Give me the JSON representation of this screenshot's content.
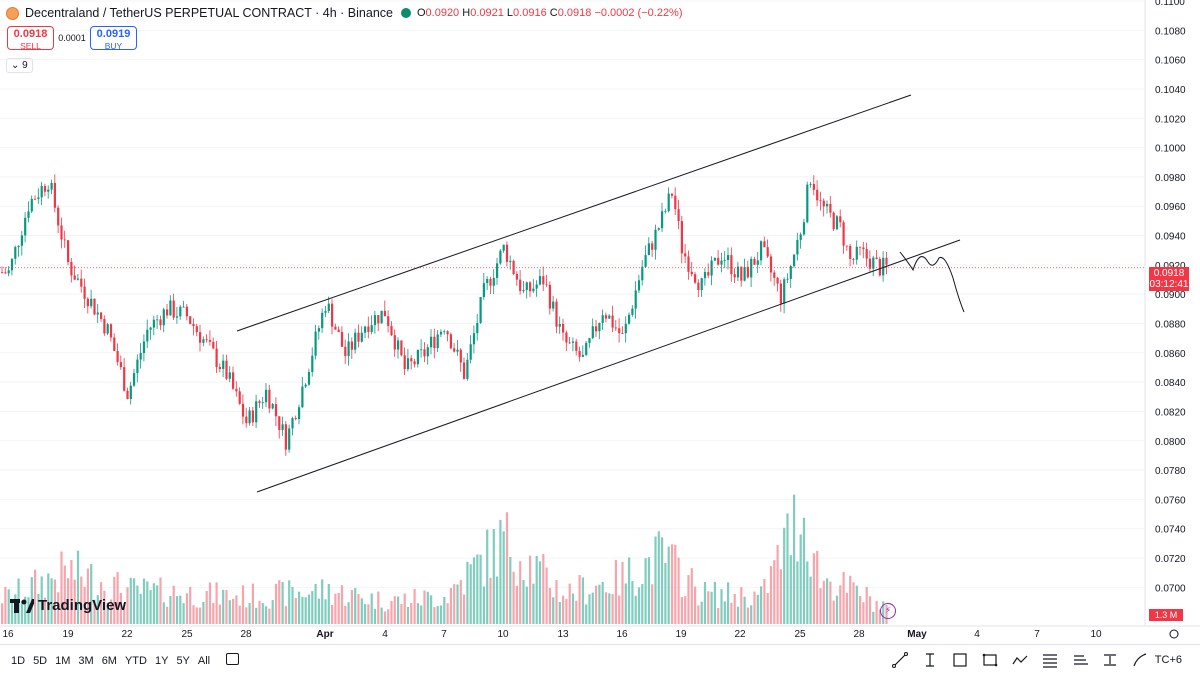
{
  "header": {
    "symbol": "Decentraland / TetherUS PERPETUAL CONTRACT · 4h · Binance",
    "ohlc": [
      {
        "k": "O",
        "v": "0.0920"
      },
      {
        "k": "H",
        "v": "0.0921"
      },
      {
        "k": "L",
        "v": "0.0916"
      },
      {
        "k": "C",
        "v": "0.0918"
      }
    ],
    "change": "−0.0002 (−0.22%)"
  },
  "trade": {
    "sell_price": "0.0918",
    "sell_label": "SELL",
    "spread": "0.0001",
    "buy_price": "0.0919",
    "buy_label": "BUY"
  },
  "indicator_toggle": "9",
  "price_axis": {
    "ticks": [
      "0.1100",
      "0.1080",
      "0.1060",
      "0.1040",
      "0.1020",
      "0.1000",
      "0.0980",
      "0.0960",
      "0.0940",
      "0.0920",
      "0.0900",
      "0.0880",
      "0.0860",
      "0.0840",
      "0.0820",
      "0.0800",
      "0.0780",
      "0.0760",
      "0.0740",
      "0.0720",
      "0.0700"
    ],
    "last_price": "0.0918",
    "countdown": "03:12:41",
    "volume_label": "1.3 M"
  },
  "time_axis": [
    "16",
    "19",
    "22",
    "25",
    "28",
    "Apr",
    "4",
    "7",
    "10",
    "13",
    "16",
    "19",
    "22",
    "25",
    "28",
    "May",
    "4",
    "7",
    "10"
  ],
  "logo": "TradingView",
  "timeframes": [
    "1D",
    "5D",
    "1M",
    "3M",
    "6M",
    "YTD",
    "1Y",
    "5Y",
    "All"
  ],
  "timezone_label": "TC+6",
  "colors": {
    "up": "#089981",
    "down": "#f23645",
    "up_vol": "#7fcdbe",
    "down_vol": "#f7a5ac",
    "accent": "#2962ff"
  },
  "chart_data": {
    "type": "candlestick",
    "y_range": [
      0.069,
      0.11
    ],
    "annotations": [
      "ascending channel (upper and lower trendlines)",
      "projected down-path sketch"
    ],
    "close_path": [
      {
        "x": "Mar 16",
        "y": 0.0915
      },
      {
        "x": "Mar 17",
        "y": 0.0962
      },
      {
        "x": "Mar 18",
        "y": 0.0978
      },
      {
        "x": "Mar 19",
        "y": 0.092
      },
      {
        "x": "Mar 20",
        "y": 0.0898
      },
      {
        "x": "Mar 21",
        "y": 0.0875
      },
      {
        "x": "Mar 22",
        "y": 0.0832
      },
      {
        "x": "Mar 23",
        "y": 0.0876
      },
      {
        "x": "Mar 24",
        "y": 0.089
      },
      {
        "x": "Mar 25",
        "y": 0.0885
      },
      {
        "x": "Mar 27",
        "y": 0.0845
      },
      {
        "x": "Mar 28",
        "y": 0.0812
      },
      {
        "x": "Mar 29",
        "y": 0.0834
      },
      {
        "x": "Mar 30",
        "y": 0.08
      },
      {
        "x": "Mar 31",
        "y": 0.0845
      },
      {
        "x": "Apr 1",
        "y": 0.0895
      },
      {
        "x": "Apr 2",
        "y": 0.0858
      },
      {
        "x": "Apr 3",
        "y": 0.088
      },
      {
        "x": "Apr 4",
        "y": 0.0888
      },
      {
        "x": "Apr 5",
        "y": 0.0848
      },
      {
        "x": "Apr 6",
        "y": 0.086
      },
      {
        "x": "Apr 7",
        "y": 0.088
      },
      {
        "x": "Apr 8",
        "y": 0.0845
      },
      {
        "x": "Apr 9",
        "y": 0.0902
      },
      {
        "x": "Apr 10",
        "y": 0.0932
      },
      {
        "x": "Apr 11",
        "y": 0.09
      },
      {
        "x": "Apr 12",
        "y": 0.091
      },
      {
        "x": "Apr 13",
        "y": 0.0868
      },
      {
        "x": "Apr 14",
        "y": 0.0855
      },
      {
        "x": "Apr 15",
        "y": 0.089
      },
      {
        "x": "Apr 16",
        "y": 0.087
      },
      {
        "x": "Apr 17",
        "y": 0.092
      },
      {
        "x": "Apr 18",
        "y": 0.0952
      },
      {
        "x": "Apr 18b",
        "y": 0.097
      },
      {
        "x": "Apr 19",
        "y": 0.093
      },
      {
        "x": "Apr 20",
        "y": 0.0905
      },
      {
        "x": "Apr 21",
        "y": 0.0928
      },
      {
        "x": "Apr 22",
        "y": 0.091
      },
      {
        "x": "Apr 23",
        "y": 0.093
      },
      {
        "x": "Apr 24",
        "y": 0.0898
      },
      {
        "x": "Apr 24b",
        "y": 0.092
      },
      {
        "x": "Apr 25",
        "y": 0.0945
      },
      {
        "x": "Apr 25b",
        "y": 0.0982
      },
      {
        "x": "Apr 26",
        "y": 0.096
      },
      {
        "x": "Apr 27",
        "y": 0.0945
      },
      {
        "x": "Apr 27b",
        "y": 0.0922
      },
      {
        "x": "Apr 28",
        "y": 0.0928
      },
      {
        "x": "Apr 29",
        "y": 0.0918
      }
    ],
    "volume_path": [
      {
        "x": "Mar 16",
        "y": 0.18
      },
      {
        "x": "Mar 19",
        "y": 0.35
      },
      {
        "x": "Mar 22",
        "y": 0.22
      },
      {
        "x": "Mar 25",
        "y": 0.2
      },
      {
        "x": "Mar 28",
        "y": 0.18
      },
      {
        "x": "Apr 1",
        "y": 0.22
      },
      {
        "x": "Apr 4",
        "y": 0.15
      },
      {
        "x": "Apr 7",
        "y": 0.18
      },
      {
        "x": "Apr 10",
        "y": 0.55
      },
      {
        "x": "Apr 13",
        "y": 0.2
      },
      {
        "x": "Apr 16",
        "y": 0.3
      },
      {
        "x": "Apr 18",
        "y": 0.45
      },
      {
        "x": "Apr 20",
        "y": 0.2
      },
      {
        "x": "Apr 23",
        "y": 0.18
      },
      {
        "x": "Apr 25",
        "y": 0.75
      },
      {
        "x": "Apr 26",
        "y": 0.3
      },
      {
        "x": "Apr 28",
        "y": 0.2
      },
      {
        "x": "Apr 29",
        "y": 0.12
      }
    ]
  }
}
